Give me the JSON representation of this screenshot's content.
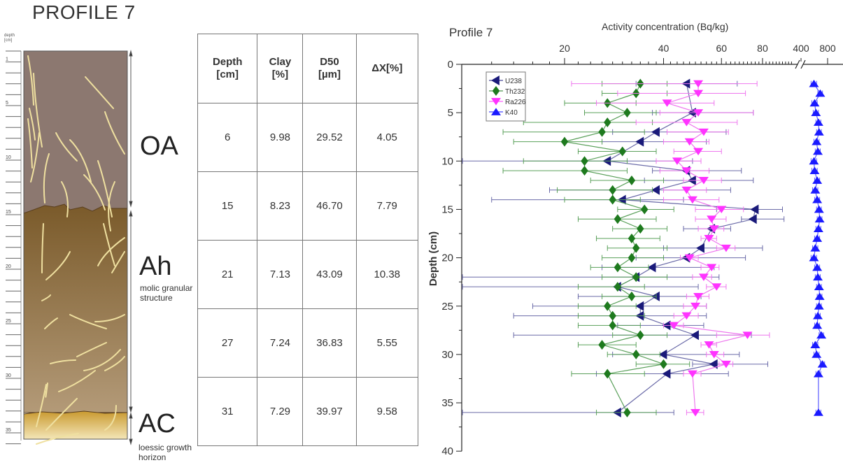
{
  "profile": {
    "title": "PROFILE 7",
    "depth_label_line1": "depth",
    "depth_label_line2": "[cm]",
    "scale_labels": [
      "1",
      "5",
      "10",
      "15",
      "20",
      "25",
      "30",
      "35"
    ],
    "horizons": [
      {
        "name": "OA",
        "description": "",
        "color": "#8c7870"
      },
      {
        "name": "Ah",
        "description_line1": "molic granular",
        "description_line2": "structure",
        "color": "#8a6a3c"
      },
      {
        "name": "AC",
        "description_line1": "loessic growth",
        "description_line2": "horizon",
        "color": "#d6b04c"
      }
    ]
  },
  "table": {
    "headers": [
      {
        "line1": "Depth",
        "line2": "[cm]"
      },
      {
        "line1": "Clay",
        "line2": "[%]"
      },
      {
        "line1": "D50",
        "line2": "[µm]"
      },
      {
        "line1": "ΔX[%]",
        "line2": ""
      }
    ],
    "rows": [
      [
        "6",
        "9.98",
        "29.52",
        "4.05"
      ],
      [
        "15",
        "8.23",
        "46.70",
        "7.79"
      ],
      [
        "21",
        "7.13",
        "43.09",
        "10.38"
      ],
      [
        "27",
        "7.24",
        "36.83",
        "5.55"
      ],
      [
        "31",
        "7.29",
        "39.97",
        "9.58"
      ]
    ]
  },
  "chart_data": {
    "type": "scatter",
    "title": "Profile 7",
    "xlabel": "Activity concentration  (Bq/kg)",
    "ylabel": "Depth (cm)",
    "x_scale": "log (broken axis: 400, 800 on right segment)",
    "x_ticks_main": [
      "20",
      "40",
      "60",
      "80"
    ],
    "x_ticks_break": [
      "400",
      "800"
    ],
    "y_ticks": [
      "0",
      "5",
      "10",
      "15",
      "20",
      "25",
      "30",
      "35",
      "40"
    ],
    "ylim": [
      0,
      40
    ],
    "y_inverted": true,
    "legend": {
      "position": "top-left",
      "entries": [
        "U238",
        "Th232",
        "Ra226",
        "K40"
      ]
    },
    "colors": {
      "U238": "#1a1a7a",
      "Th232": "#1e7a1e",
      "Ra226": "#ff33ff",
      "K40": "#1a1aff"
    },
    "series": [
      {
        "name": "U238",
        "marker": "left-triangle",
        "depth": [
          2,
          5,
          7,
          8,
          10,
          11,
          12,
          13,
          14,
          15,
          16,
          17,
          19,
          20,
          21,
          22,
          23,
          24,
          25,
          26,
          27,
          28,
          30,
          31,
          32,
          36
        ],
        "values": [
          47,
          49,
          38,
          34,
          27,
          47,
          49,
          38,
          30,
          76,
          75,
          56,
          52,
          47,
          37,
          33,
          29,
          38,
          34,
          34,
          41,
          50,
          40,
          57,
          41,
          29
        ],
        "err_low": [
          14,
          12,
          10,
          8,
          20,
          10,
          14,
          20,
          18,
          18,
          6,
          10,
          12,
          14,
          11,
          26,
          24,
          16,
          18,
          20,
          12,
          36,
          12,
          8,
          16,
          20
        ],
        "err_high": [
          20,
          26,
          24,
          20,
          22,
          22,
          26,
          26,
          16,
          16,
          18,
          8,
          28,
          24,
          20,
          26,
          22,
          14,
          20,
          20,
          12,
          24,
          28,
          26,
          22,
          14
        ]
      },
      {
        "name": "Th232",
        "marker": "diamond",
        "depth": [
          2,
          3,
          4,
          5,
          6,
          7,
          8,
          9,
          10,
          11,
          12,
          13,
          14,
          15,
          16,
          17,
          18,
          19,
          20,
          21,
          22,
          23,
          24,
          25,
          26,
          27,
          28,
          29,
          30,
          31,
          32,
          36
        ],
        "values": [
          34,
          33,
          27,
          31,
          27,
          26,
          20,
          30,
          23,
          23,
          32,
          28,
          28,
          35,
          29,
          34,
          32,
          33,
          32,
          29,
          33,
          29,
          32,
          27,
          28,
          28,
          34,
          26,
          33,
          40,
          27,
          31
        ],
        "err_low": [
          8,
          7,
          7,
          8,
          12,
          13,
          6,
          8,
          8,
          10,
          8,
          9,
          8,
          6,
          7,
          6,
          7,
          6,
          6,
          5,
          7,
          7,
          6,
          5,
          6,
          6,
          6,
          4,
          6,
          7,
          6,
          6
        ],
        "err_high": [
          7,
          8,
          6,
          7,
          10,
          9,
          6,
          8,
          8,
          8,
          8,
          9,
          6,
          8,
          9,
          7,
          7,
          8,
          8,
          7,
          8,
          6,
          6,
          6,
          7,
          6,
          7,
          7,
          6,
          8,
          8,
          7
        ]
      },
      {
        "name": "Ra226",
        "marker": "down-triangle",
        "depth": [
          2,
          3,
          4,
          5,
          6,
          7,
          8,
          9,
          10,
          11,
          12,
          13,
          14,
          15,
          16,
          17,
          18,
          19,
          20,
          21,
          22,
          23,
          24,
          25,
          26,
          27,
          28,
          29,
          30,
          31,
          32,
          36
        ],
        "values": [
          51,
          51,
          41,
          51,
          47,
          53,
          48,
          51,
          44,
          47,
          53,
          47,
          49,
          60,
          56,
          57,
          55,
          62,
          48,
          56,
          53,
          58,
          51,
          50,
          47,
          43,
          72,
          55,
          57,
          62,
          49,
          50
        ],
        "err_low": [
          30,
          22,
          16,
          12,
          14,
          12,
          8,
          8,
          6,
          8,
          7,
          7,
          9,
          10,
          6,
          6,
          3,
          4,
          3,
          4,
          4,
          4,
          4,
          4,
          4,
          3,
          14,
          3,
          3,
          3,
          3,
          3
        ],
        "err_high": [
          26,
          20,
          16,
          24,
          20,
          10,
          7,
          9,
          8,
          8,
          7,
          7,
          10,
          10,
          6,
          4,
          3,
          4,
          3,
          3,
          3,
          4,
          4,
          4,
          4,
          3,
          12,
          3,
          4,
          3,
          3,
          3
        ]
      },
      {
        "name": "K40",
        "marker": "up-triangle",
        "depth": [
          2,
          3,
          4,
          5,
          6,
          7,
          8,
          9,
          10,
          11,
          12,
          13,
          14,
          15,
          16,
          17,
          18,
          19,
          20,
          21,
          22,
          23,
          24,
          25,
          26,
          27,
          28,
          29,
          30,
          31,
          32,
          36
        ],
        "values": [
          560,
          660,
          570,
          590,
          630,
          640,
          600,
          620,
          560,
          570,
          610,
          580,
          610,
          640,
          650,
          630,
          610,
          580,
          560,
          610,
          620,
          640,
          650,
          640,
          620,
          610,
          680,
          580,
          600,
          700,
          630,
          630
        ],
        "err_low": [
          40,
          40,
          40,
          40,
          40,
          40,
          40,
          40,
          40,
          40,
          40,
          40,
          40,
          40,
          40,
          40,
          40,
          40,
          40,
          40,
          40,
          40,
          40,
          40,
          40,
          40,
          40,
          40,
          40,
          40,
          40,
          40
        ],
        "err_high": [
          40,
          40,
          40,
          40,
          40,
          40,
          40,
          40,
          40,
          40,
          40,
          40,
          40,
          40,
          40,
          40,
          40,
          40,
          40,
          40,
          40,
          40,
          40,
          40,
          40,
          40,
          40,
          40,
          40,
          40,
          40,
          40
        ]
      }
    ]
  }
}
